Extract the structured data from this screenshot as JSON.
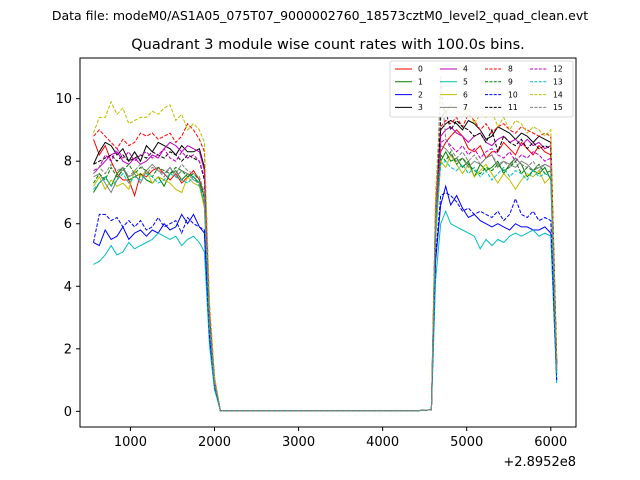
{
  "figure": {
    "suptitle": "Data file: modeM0/AS1A05_075T07_9000002760_18573cztM0_level2_quad_clean.evt"
  },
  "chart_data": {
    "type": "line",
    "title": "Quadrant 3 module wise count rates with 100.0s bins.",
    "xlabel": "",
    "ylabel": "",
    "x_offset_label": "+2.8952e8",
    "xlim": [
      400,
      6300
    ],
    "ylim": [
      -0.5,
      11.3
    ],
    "xticks": [
      1000,
      2000,
      3000,
      4000,
      5000,
      6000
    ],
    "yticks": [
      0,
      2,
      4,
      6,
      8,
      10
    ],
    "grid": false,
    "legend_position": "top-right",
    "legend_columns": 4,
    "x": [
      560,
      630,
      700,
      770,
      840,
      910,
      980,
      1050,
      1120,
      1190,
      1260,
      1330,
      1400,
      1470,
      1540,
      1610,
      1680,
      1750,
      1820,
      1880,
      1940,
      2000,
      2070,
      2200,
      2400,
      2600,
      2800,
      3000,
      3200,
      3400,
      3600,
      3800,
      4000,
      4200,
      4400,
      4580,
      4630,
      4690,
      4750,
      4810,
      4880,
      4950,
      5020,
      5090,
      5160,
      5230,
      5300,
      5370,
      5440,
      5510,
      5580,
      5650,
      5720,
      5790,
      5860,
      5930,
      6000,
      6070
    ],
    "series": [
      {
        "name": "0",
        "color": "#ff0000",
        "dash": false,
        "values": [
          8.7,
          8.2,
          8.5,
          8.0,
          7.6,
          7.4,
          7.4,
          6.9,
          7.6,
          7.5,
          7.7,
          7.8,
          7.6,
          7.4,
          7.6,
          7.3,
          7.5,
          7.7,
          7.4,
          6.9,
          3.0,
          1.0,
          0.02,
          0.02,
          0.02,
          0.02,
          0.02,
          0.02,
          0.02,
          0.02,
          0.02,
          0.02,
          0.02,
          0.02,
          0.02,
          0.05,
          6.0,
          8.3,
          8.6,
          8.8,
          9.0,
          8.8,
          8.4,
          8.3,
          8.5,
          8.1,
          8.3,
          8.3,
          8.6,
          8.4,
          8.2,
          8.6,
          8.4,
          8.2,
          8.5,
          8.3,
          8.2,
          1.5
        ]
      },
      {
        "name": "1",
        "color": "#008000",
        "dash": false,
        "values": [
          7.0,
          7.3,
          7.5,
          7.2,
          7.6,
          7.8,
          7.4,
          7.5,
          7.6,
          7.4,
          7.3,
          7.5,
          7.2,
          7.6,
          7.7,
          7.4,
          7.6,
          7.5,
          7.3,
          6.6,
          2.7,
          0.9,
          0.02,
          0.02,
          0.02,
          0.02,
          0.02,
          0.02,
          0.02,
          0.02,
          0.02,
          0.02,
          0.02,
          0.02,
          0.02,
          0.05,
          5.6,
          8.0,
          8.3,
          8.0,
          8.1,
          7.8,
          8.0,
          7.5,
          7.9,
          7.7,
          7.8,
          8.0,
          7.6,
          7.9,
          8.1,
          7.9,
          7.5,
          7.7,
          7.6,
          7.8,
          7.4,
          1.2
        ]
      },
      {
        "name": "2",
        "color": "#0000ff",
        "dash": false,
        "values": [
          5.4,
          5.3,
          5.8,
          5.5,
          5.6,
          5.9,
          5.5,
          5.7,
          5.8,
          5.6,
          5.8,
          5.7,
          6.0,
          5.8,
          5.9,
          6.3,
          6.0,
          6.3,
          5.9,
          5.7,
          2.4,
          0.8,
          0.02,
          0.02,
          0.02,
          0.02,
          0.02,
          0.02,
          0.02,
          0.02,
          0.02,
          0.02,
          0.02,
          0.02,
          0.02,
          0.05,
          4.8,
          6.6,
          7.2,
          6.6,
          6.9,
          6.5,
          6.2,
          6.3,
          6.1,
          6.0,
          5.9,
          6.0,
          5.9,
          5.8,
          6.0,
          5.9,
          5.9,
          5.8,
          5.8,
          5.9,
          5.7,
          1.0
        ]
      },
      {
        "name": "3",
        "color": "#000000",
        "dash": false,
        "values": [
          7.9,
          8.3,
          8.6,
          8.5,
          8.2,
          8.4,
          8.0,
          8.3,
          8.0,
          8.5,
          8.3,
          8.6,
          8.5,
          8.4,
          8.2,
          8.5,
          8.3,
          8.3,
          8.4,
          7.8,
          3.1,
          1.0,
          0.02,
          0.02,
          0.02,
          0.02,
          0.02,
          0.02,
          0.02,
          0.02,
          0.02,
          0.02,
          0.02,
          0.02,
          0.02,
          0.05,
          6.5,
          9.0,
          9.2,
          9.3,
          9.2,
          9.0,
          9.3,
          9.2,
          9.0,
          8.7,
          8.8,
          9.1,
          9.0,
          8.9,
          8.7,
          8.9,
          8.8,
          8.6,
          8.8,
          8.7,
          8.6,
          1.6
        ]
      },
      {
        "name": "4",
        "color": "#bf00bf",
        "dash": false,
        "values": [
          7.6,
          7.8,
          8.0,
          8.2,
          8.3,
          8.0,
          7.9,
          8.1,
          7.9,
          8.0,
          8.2,
          8.1,
          8.4,
          8.6,
          8.5,
          8.3,
          8.5,
          8.4,
          8.3,
          7.7,
          3.0,
          1.0,
          0.02,
          0.02,
          0.02,
          0.02,
          0.02,
          0.02,
          0.02,
          0.02,
          0.02,
          0.02,
          0.02,
          0.02,
          0.02,
          0.05,
          6.4,
          8.8,
          9.0,
          9.1,
          8.9,
          8.8,
          8.6,
          8.8,
          8.9,
          8.6,
          8.5,
          8.7,
          8.8,
          8.6,
          8.7,
          8.5,
          8.7,
          8.5,
          8.6,
          8.4,
          8.5,
          1.5
        ]
      },
      {
        "name": "5",
        "color": "#00bfbf",
        "dash": false,
        "values": [
          4.7,
          4.8,
          5.0,
          5.3,
          5.0,
          5.1,
          5.4,
          5.2,
          5.3,
          5.4,
          5.5,
          5.7,
          5.6,
          5.5,
          5.6,
          5.3,
          5.5,
          5.6,
          5.4,
          5.1,
          2.1,
          0.7,
          0.02,
          0.02,
          0.02,
          0.02,
          0.02,
          0.02,
          0.02,
          0.02,
          0.02,
          0.02,
          0.02,
          0.02,
          0.02,
          0.05,
          4.2,
          6.0,
          6.4,
          6.0,
          5.9,
          5.8,
          5.7,
          5.6,
          5.2,
          5.5,
          5.3,
          5.5,
          5.4,
          5.6,
          5.7,
          5.6,
          5.7,
          5.8,
          5.6,
          5.7,
          5.6,
          0.9
        ]
      },
      {
        "name": "6",
        "color": "#bfbf00",
        "dash": false,
        "values": [
          7.2,
          7.5,
          7.1,
          7.4,
          7.2,
          7.3,
          7.1,
          7.7,
          7.5,
          7.7,
          7.3,
          7.5,
          7.4,
          7.3,
          7.1,
          7.0,
          7.5,
          7.3,
          7.2,
          6.5,
          2.6,
          0.9,
          0.02,
          0.02,
          0.02,
          0.02,
          0.02,
          0.02,
          0.02,
          0.02,
          0.02,
          0.02,
          0.02,
          0.02,
          0.02,
          0.05,
          5.5,
          8.0,
          7.8,
          8.2,
          7.9,
          7.6,
          7.9,
          7.5,
          7.7,
          7.9,
          7.6,
          7.3,
          7.6,
          7.4,
          7.1,
          7.4,
          7.6,
          7.5,
          7.7,
          7.3,
          7.5,
          1.3
        ]
      },
      {
        "name": "7",
        "color": "#808080",
        "dash": false,
        "values": [
          7.5,
          7.6,
          7.3,
          7.0,
          7.4,
          7.8,
          7.5,
          7.6,
          7.3,
          7.7,
          7.9,
          7.7,
          7.6,
          7.8,
          7.5,
          7.7,
          7.6,
          7.4,
          7.3,
          6.9,
          2.8,
          0.9,
          0.02,
          0.02,
          0.02,
          0.02,
          0.02,
          0.02,
          0.02,
          0.02,
          0.02,
          0.02,
          0.02,
          0.02,
          0.02,
          0.05,
          6.2,
          8.5,
          8.4,
          8.2,
          8.0,
          8.1,
          7.8,
          8.0,
          7.9,
          8.1,
          8.2,
          7.8,
          8.0,
          7.9,
          7.8,
          8.0,
          7.9,
          7.7,
          7.8,
          7.9,
          7.8,
          1.4
        ]
      },
      {
        "name": "8",
        "color": "#ff0000",
        "dash": true,
        "values": [
          8.8,
          9.0,
          8.8,
          8.6,
          8.4,
          8.7,
          8.5,
          8.6,
          8.9,
          8.8,
          8.9,
          8.7,
          8.8,
          8.9,
          8.6,
          8.8,
          9.2,
          9.0,
          8.7,
          8.3,
          3.4,
          1.1,
          0.02,
          0.02,
          0.02,
          0.02,
          0.02,
          0.02,
          0.02,
          0.02,
          0.02,
          0.02,
          0.02,
          0.02,
          0.02,
          0.05,
          6.8,
          9.1,
          9.3,
          9.2,
          9.4,
          9.1,
          9.5,
          9.3,
          9.0,
          9.2,
          8.9,
          9.1,
          9.2,
          9.0,
          8.9,
          9.1,
          9.0,
          8.9,
          8.8,
          8.9,
          8.8,
          1.7
        ]
      },
      {
        "name": "9",
        "color": "#008000",
        "dash": true,
        "values": [
          7.3,
          7.6,
          7.4,
          7.8,
          7.5,
          7.7,
          7.9,
          7.6,
          7.8,
          7.7,
          7.5,
          7.8,
          7.7,
          7.6,
          7.8,
          7.7,
          7.5,
          7.6,
          7.4,
          6.8,
          2.8,
          0.9,
          0.02,
          0.02,
          0.02,
          0.02,
          0.02,
          0.02,
          0.02,
          0.02,
          0.02,
          0.02,
          0.02,
          0.02,
          0.02,
          0.05,
          5.8,
          8.2,
          8.0,
          8.3,
          7.9,
          8.1,
          7.9,
          7.7,
          7.6,
          7.8,
          7.7,
          7.9,
          7.7,
          7.8,
          8.0,
          7.6,
          7.8,
          7.7,
          7.9,
          7.6,
          7.7,
          1.3
        ]
      },
      {
        "name": "10",
        "color": "#0000ff",
        "dash": true,
        "values": [
          5.4,
          6.3,
          6.3,
          6.1,
          6.2,
          5.9,
          6.1,
          5.9,
          6.1,
          5.8,
          5.9,
          6.2,
          5.9,
          6.0,
          6.1,
          5.7,
          6.2,
          6.0,
          5.9,
          5.8,
          2.4,
          0.8,
          0.02,
          0.02,
          0.02,
          0.02,
          0.02,
          0.02,
          0.02,
          0.02,
          0.02,
          0.02,
          0.02,
          0.02,
          0.02,
          0.05,
          5.0,
          6.9,
          7.0,
          6.9,
          6.7,
          6.4,
          6.5,
          6.3,
          6.4,
          6.3,
          6.2,
          6.4,
          6.1,
          6.3,
          6.8,
          6.3,
          6.2,
          6.4,
          6.1,
          6.2,
          6.1,
          1.0
        ]
      },
      {
        "name": "11",
        "color": "#000000",
        "dash": true,
        "values": [
          7.9,
          8.0,
          8.1,
          8.2,
          8.0,
          8.2,
          8.0,
          8.1,
          8.2,
          8.1,
          8.3,
          8.2,
          8.1,
          8.3,
          8.2,
          8.0,
          8.2,
          8.1,
          8.0,
          7.4,
          3.0,
          1.0,
          0.02,
          0.02,
          0.02,
          0.02,
          0.02,
          0.02,
          0.02,
          0.02,
          0.02,
          0.02,
          0.02,
          0.02,
          0.02,
          0.05,
          6.0,
          9.4,
          9.6,
          9.0,
          9.3,
          9.1,
          9.0,
          8.8,
          8.9,
          8.6,
          9.0,
          8.3,
          8.8,
          8.6,
          8.5,
          8.7,
          8.4,
          8.6,
          8.4,
          8.5,
          8.4,
          1.5
        ]
      },
      {
        "name": "12",
        "color": "#bf00bf",
        "dash": true,
        "values": [
          7.7,
          7.8,
          8.2,
          8.0,
          8.4,
          8.1,
          8.3,
          8.0,
          8.2,
          8.3,
          8.1,
          8.2,
          8.4,
          8.1,
          8.0,
          8.3,
          8.1,
          8.2,
          8.0,
          7.5,
          3.0,
          1.0,
          0.02,
          0.02,
          0.02,
          0.02,
          0.02,
          0.02,
          0.02,
          0.02,
          0.02,
          0.02,
          0.02,
          0.02,
          0.02,
          0.05,
          6.2,
          8.6,
          8.7,
          8.5,
          8.3,
          8.5,
          8.2,
          8.4,
          8.1,
          8.3,
          8.4,
          8.2,
          8.1,
          8.3,
          8.0,
          8.2,
          8.1,
          8.3,
          8.2,
          8.0,
          8.1,
          1.4
        ]
      },
      {
        "name": "13",
        "color": "#00bfbf",
        "dash": true,
        "values": [
          7.1,
          7.3,
          7.5,
          7.2,
          7.4,
          7.6,
          7.3,
          7.5,
          7.4,
          7.6,
          7.5,
          7.3,
          7.4,
          7.6,
          7.5,
          7.4,
          7.3,
          7.5,
          7.2,
          6.7,
          2.7,
          0.9,
          0.02,
          0.02,
          0.02,
          0.02,
          0.02,
          0.02,
          0.02,
          0.02,
          0.02,
          0.02,
          0.02,
          0.02,
          0.02,
          0.05,
          5.8,
          7.9,
          8.0,
          7.8,
          7.7,
          7.9,
          7.6,
          7.8,
          7.5,
          7.7,
          7.4,
          7.6,
          7.8,
          7.5,
          7.7,
          7.6,
          7.4,
          7.7,
          7.5,
          7.6,
          7.5,
          1.2
        ]
      },
      {
        "name": "14",
        "color": "#bfbf00",
        "dash": true,
        "values": [
          8.9,
          9.4,
          9.4,
          9.9,
          9.5,
          9.7,
          9.2,
          9.3,
          9.4,
          9.4,
          9.6,
          9.5,
          9.7,
          9.8,
          9.3,
          9.5,
          9.0,
          9.2,
          9.0,
          8.6,
          3.5,
          1.1,
          0.02,
          0.02,
          0.02,
          0.02,
          0.02,
          0.02,
          0.02,
          0.02,
          0.02,
          0.02,
          0.02,
          0.02,
          0.02,
          0.05,
          7.0,
          10.1,
          9.5,
          9.8,
          9.6,
          9.4,
          9.7,
          9.2,
          9.5,
          9.4,
          9.6,
          9.1,
          9.4,
          9.0,
          9.3,
          9.2,
          8.9,
          9.1,
          9.0,
          8.8,
          9.0,
          1.7
        ]
      },
      {
        "name": "15",
        "color": "#808080",
        "dash": true,
        "values": [
          7.6,
          7.8,
          7.6,
          7.9,
          7.7,
          7.8,
          7.5,
          7.7,
          7.9,
          7.6,
          7.8,
          7.7,
          7.5,
          7.8,
          7.6,
          7.9,
          7.7,
          7.6,
          7.5,
          7.0,
          2.8,
          0.9,
          0.02,
          0.02,
          0.02,
          0.02,
          0.02,
          0.02,
          0.02,
          0.02,
          0.02,
          0.02,
          0.02,
          0.02,
          0.02,
          0.05,
          6.0,
          10.7,
          8.7,
          8.4,
          8.1,
          8.3,
          8.0,
          8.2,
          7.9,
          8.1,
          8.2,
          7.9,
          8.0,
          7.8,
          8.1,
          7.9,
          7.8,
          8.0,
          7.7,
          7.9,
          7.8,
          1.3
        ]
      }
    ]
  }
}
